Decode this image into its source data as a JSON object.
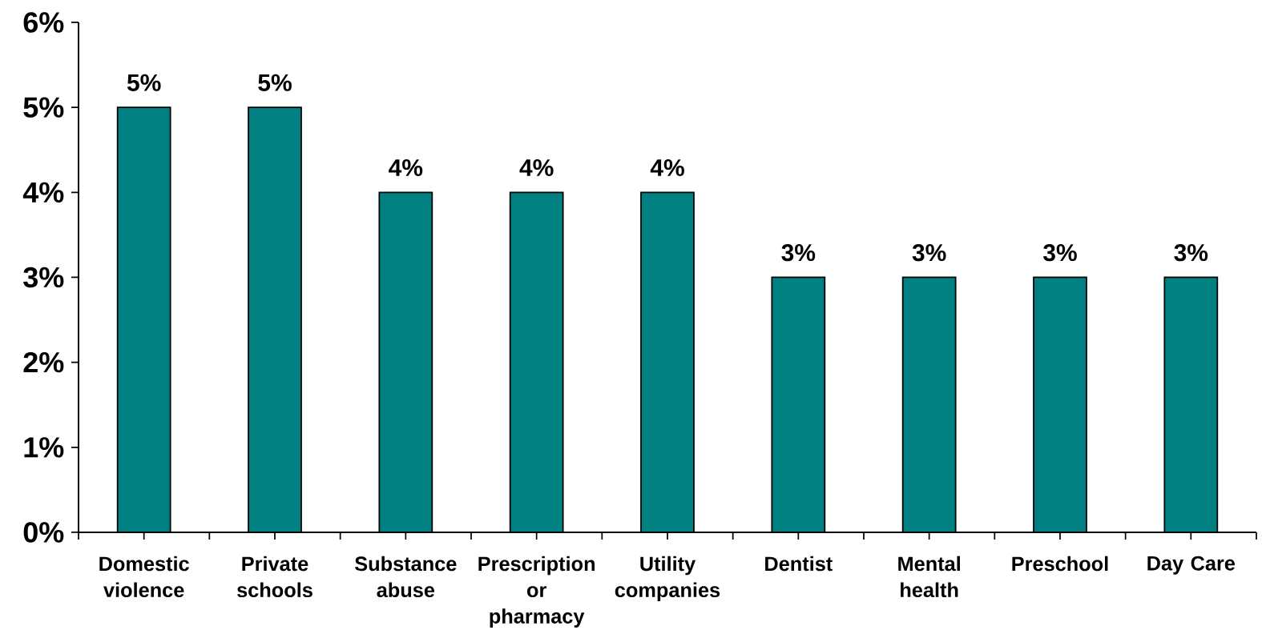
{
  "chart_data": {
    "type": "bar",
    "categories": [
      "Domestic violence",
      "Private schools",
      "Substance abuse",
      "Prescription or pharmacy",
      "Utility companies",
      "Dentist",
      "Mental health",
      "Preschool",
      "Day Care"
    ],
    "values": [
      5,
      5,
      4,
      4,
      4,
      3,
      3,
      3,
      3
    ],
    "value_labels": [
      "5%",
      "5%",
      "4%",
      "4%",
      "4%",
      "3%",
      "3%",
      "3%",
      "3%"
    ],
    "color": "#008080",
    "ylim": [
      0,
      6
    ],
    "yticks": [
      {
        "value": 0,
        "label": "0%"
      },
      {
        "value": 1,
        "label": "1%"
      },
      {
        "value": 2,
        "label": "2%"
      },
      {
        "value": 3,
        "label": "3%"
      },
      {
        "value": 4,
        "label": "4%"
      },
      {
        "value": 5,
        "label": "5%"
      },
      {
        "value": 6,
        "label": "6%"
      }
    ]
  }
}
